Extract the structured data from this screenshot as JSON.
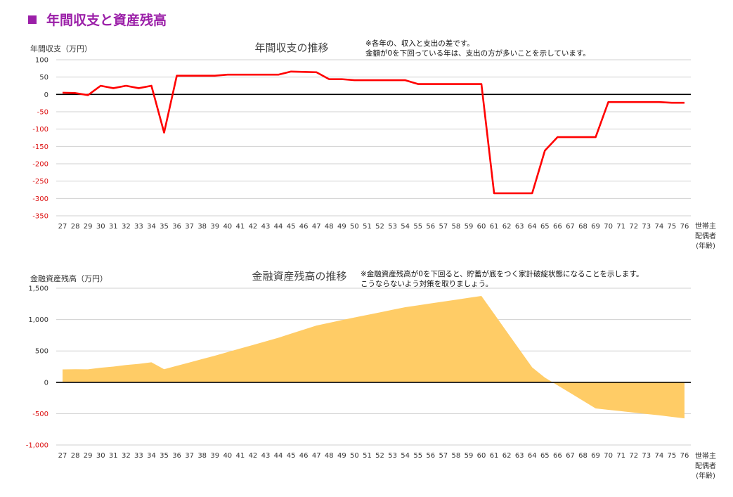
{
  "heading": "年間収支と資産残高",
  "chart_data": [
    {
      "type": "line",
      "title": "年間収支の推移",
      "ylabel": "年間収支（万円）",
      "xlabel": [
        "世帯主",
        "配偶者",
        "(年齢)"
      ],
      "note": [
        "※各年の、収入と支出の差です。",
        "金額が0を下回っている年は、支出の方が多いことを示しています。"
      ],
      "ylim": [
        -350,
        100
      ],
      "yticks": [
        100,
        50,
        0,
        -50,
        -100,
        -150,
        -200,
        -250,
        -300,
        -350
      ],
      "x": [
        27,
        28,
        29,
        30,
        31,
        32,
        33,
        34,
        35,
        36,
        37,
        38,
        39,
        40,
        41,
        42,
        43,
        44,
        45,
        46,
        47,
        48,
        49,
        50,
        51,
        52,
        53,
        54,
        55,
        56,
        57,
        58,
        59,
        60,
        61,
        62,
        63,
        64,
        65,
        66,
        67,
        68,
        69,
        70,
        71,
        72,
        73,
        74,
        75,
        76
      ],
      "series": [
        {
          "color": "#ff0000",
          "values": [
            5,
            4,
            -2,
            25,
            18,
            25,
            18,
            25,
            -110,
            54,
            54,
            54,
            54,
            57,
            57,
            57,
            57,
            57,
            66,
            65,
            64,
            44,
            44,
            41,
            41,
            41,
            41,
            41,
            30,
            30,
            30,
            30,
            30,
            30,
            -285,
            -285,
            -285,
            -285,
            -162,
            -123,
            -123,
            -123,
            -123,
            -22,
            -22,
            -22,
            -22,
            -22,
            -24,
            -24
          ]
        }
      ]
    },
    {
      "type": "area",
      "title": "金融資産残高の推移",
      "ylabel": "金融資産残高（万円）",
      "xlabel": [
        "世帯主",
        "配偶者",
        "(年齢)"
      ],
      "note": [
        "※金融資産残高が0を下回ると、貯蓄が底をつく家計破綻状態になることを示します。",
        "こうならないよう対策を取りましょう。"
      ],
      "ylim": [
        -1000,
        1500
      ],
      "yticks": [
        1500,
        1000,
        500,
        0,
        -500,
        -1000
      ],
      "ytick_labels": [
        "1,500",
        "1,000",
        "500",
        "0",
        "-500",
        "-1,000"
      ],
      "x": [
        27,
        28,
        29,
        30,
        31,
        32,
        33,
        34,
        35,
        36,
        37,
        38,
        39,
        40,
        41,
        42,
        43,
        44,
        45,
        46,
        47,
        48,
        49,
        50,
        51,
        52,
        53,
        54,
        55,
        56,
        57,
        58,
        59,
        60,
        61,
        62,
        63,
        64,
        65,
        66,
        67,
        68,
        69,
        70,
        71,
        72,
        73,
        74,
        75,
        76
      ],
      "series": [
        {
          "color": "#ffcc66",
          "values": [
            205,
            208,
            206,
            232,
            250,
            275,
            293,
            318,
            208,
            262,
            316,
            370,
            424,
            481,
            538,
            595,
            652,
            709,
            775,
            840,
            904,
            948,
            992,
            1033,
            1074,
            1115,
            1156,
            1197,
            1227,
            1257,
            1287,
            1317,
            1347,
            1377,
            1092,
            807,
            522,
            237,
            75,
            -48,
            -171,
            -294,
            -417,
            -439,
            -461,
            -483,
            -505,
            -527,
            -551,
            -575
          ]
        }
      ]
    }
  ]
}
